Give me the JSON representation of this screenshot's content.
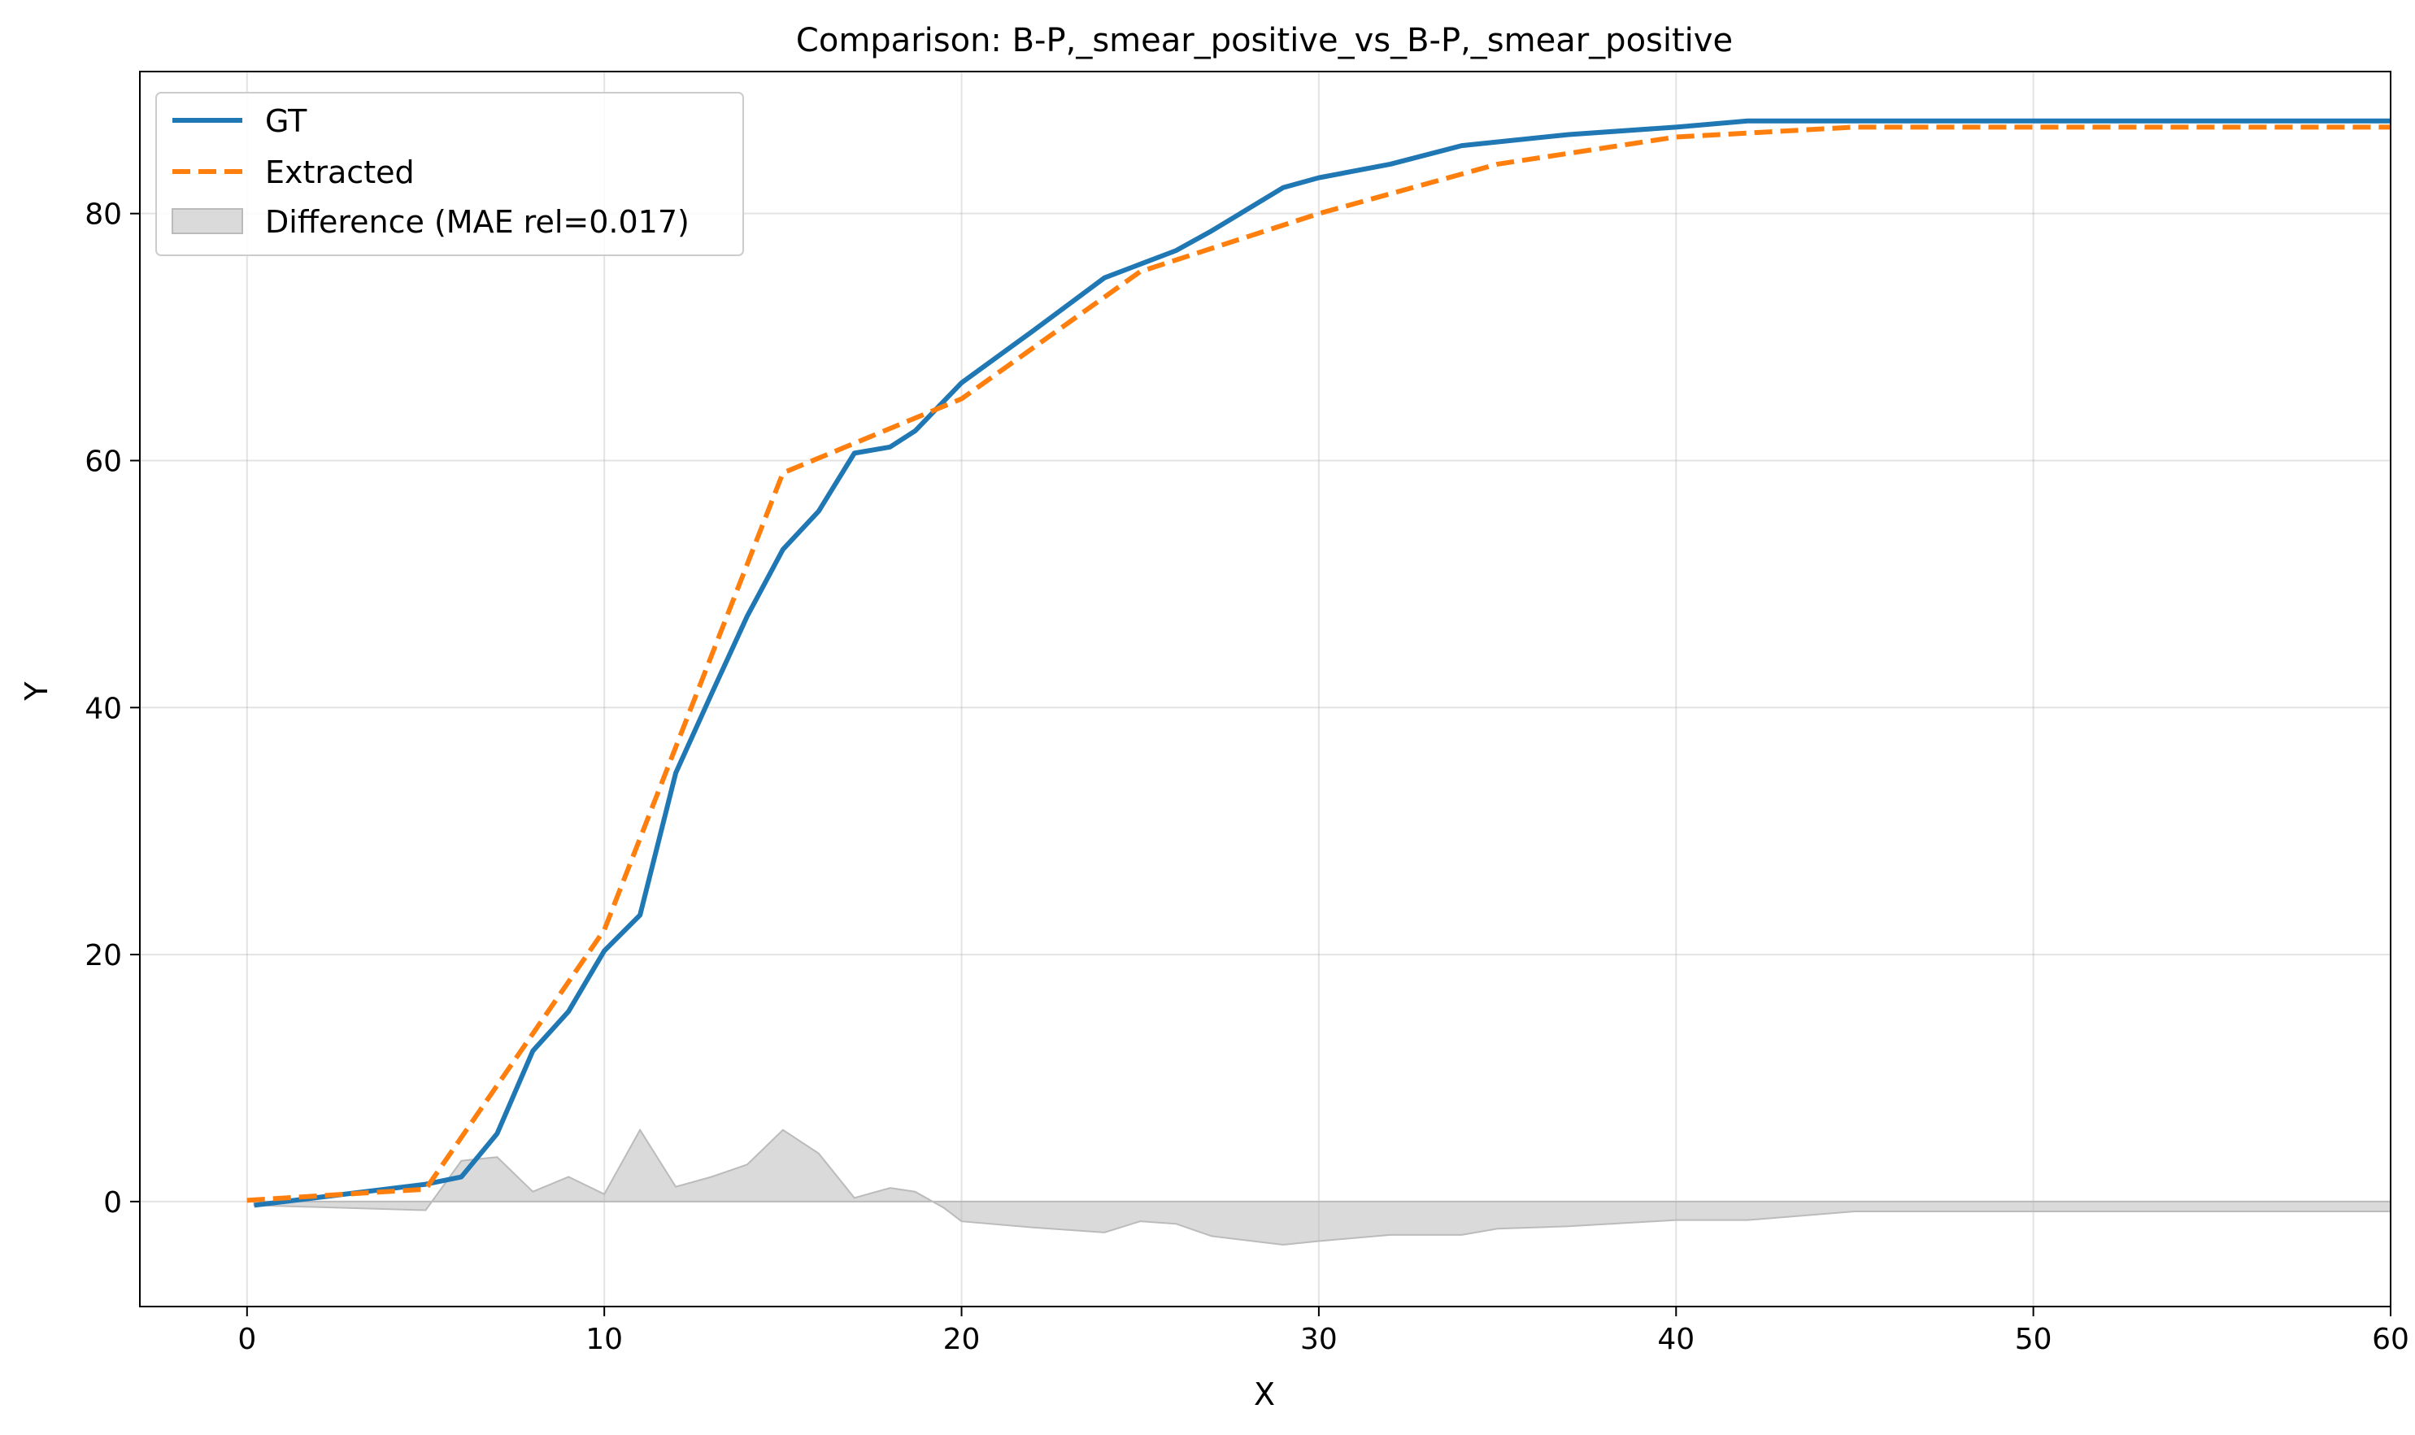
{
  "chart_data": {
    "type": "line",
    "title": "Comparison: B-P,_smear_positive_vs_B-P,_smear_positive",
    "xlabel": "X",
    "ylabel": "Y",
    "xlim": [
      -3,
      60
    ],
    "ylim": [
      -8.5,
      91.5
    ],
    "xticks": [
      0,
      10,
      20,
      30,
      40,
      50,
      60
    ],
    "yticks": [
      0,
      20,
      40,
      60,
      80
    ],
    "grid": true,
    "legend_position": "top-left",
    "series": [
      {
        "name": "GT",
        "color": "#1f77b4",
        "style": "solid",
        "x": [
          0.2,
          5,
          6,
          7,
          8,
          9,
          10,
          11,
          12,
          13,
          14,
          15,
          16,
          17,
          18,
          18.7,
          20,
          22,
          24,
          25,
          26,
          27,
          29,
          30,
          32,
          34,
          37,
          40,
          42,
          45,
          50,
          60
        ],
        "y": [
          -0.3,
          1.4,
          2.0,
          5.5,
          12.2,
          15.4,
          20.3,
          23.2,
          34.7,
          41.1,
          47.4,
          52.8,
          55.9,
          60.6,
          61.1,
          62.4,
          66.3,
          70.5,
          74.8,
          75.9,
          77.0,
          78.6,
          82.1,
          82.9,
          84.0,
          85.5,
          86.4,
          87.0,
          87.5,
          87.5,
          87.5,
          87.5
        ]
      },
      {
        "name": "Extracted",
        "color": "#ff7f0e",
        "style": "dashed",
        "x": [
          0,
          5,
          10,
          15,
          20,
          25,
          30,
          35,
          40,
          45,
          50,
          60
        ],
        "y": [
          0.1,
          1.0,
          22.0,
          59.0,
          65.0,
          75.3,
          80.0,
          84.0,
          86.2,
          87.0,
          87.0,
          87.0
        ]
      }
    ],
    "difference": {
      "name": "Difference (MAE rel=0.017)",
      "color": "#bbbbbb",
      "x": [
        0.2,
        5,
        6,
        7,
        8,
        9,
        10,
        11,
        12,
        13,
        14,
        15,
        16,
        17,
        18,
        18.7,
        19.5,
        20,
        22,
        24,
        25,
        26,
        27,
        29,
        30,
        32,
        34,
        35,
        37,
        40,
        42,
        45,
        50,
        60
      ],
      "y": [
        -0.3,
        -0.7,
        3.3,
        3.6,
        0.8,
        2.0,
        0.6,
        5.8,
        1.2,
        2.0,
        3.0,
        5.8,
        3.9,
        0.3,
        1.1,
        0.8,
        -0.5,
        -1.6,
        -2.1,
        -2.5,
        -1.6,
        -1.8,
        -2.8,
        -3.5,
        -3.2,
        -2.7,
        -2.7,
        -2.2,
        -2.0,
        -1.5,
        -1.5,
        -0.8,
        -0.8,
        -0.8
      ]
    }
  }
}
